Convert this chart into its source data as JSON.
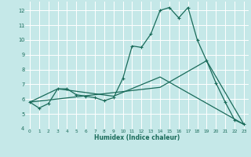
{
  "xlabel": "Humidex (Indice chaleur)",
  "bg_color": "#c5e8e8",
  "line_color": "#1a6b5a",
  "grid_color": "#ffffff",
  "xlim": [
    -0.5,
    23.5
  ],
  "ylim": [
    4,
    12.6
  ],
  "xticks": [
    0,
    1,
    2,
    3,
    4,
    5,
    6,
    7,
    8,
    9,
    10,
    11,
    12,
    13,
    14,
    15,
    16,
    17,
    18,
    19,
    20,
    21,
    22,
    23
  ],
  "yticks": [
    4,
    5,
    6,
    7,
    8,
    9,
    10,
    11,
    12
  ],
  "line1_x": [
    0,
    1,
    2,
    3,
    4,
    5,
    6,
    7,
    8,
    9,
    10,
    11,
    12,
    13,
    14,
    15,
    16,
    17,
    18,
    19,
    20,
    21,
    22,
    23
  ],
  "line1_y": [
    5.8,
    5.4,
    5.7,
    6.7,
    6.7,
    6.3,
    6.2,
    6.1,
    5.9,
    6.1,
    7.4,
    9.6,
    9.5,
    10.4,
    12.0,
    12.2,
    11.5,
    12.2,
    10.0,
    8.6,
    7.1,
    5.8,
    4.6,
    4.3
  ],
  "line2_x": [
    0,
    14,
    19,
    23
  ],
  "line2_y": [
    5.8,
    6.8,
    8.6,
    4.3
  ],
  "line3_x": [
    0,
    3,
    9,
    14,
    23
  ],
  "line3_y": [
    5.8,
    6.7,
    6.2,
    7.5,
    4.3
  ],
  "marker_size": 2.0,
  "line_width": 0.9
}
